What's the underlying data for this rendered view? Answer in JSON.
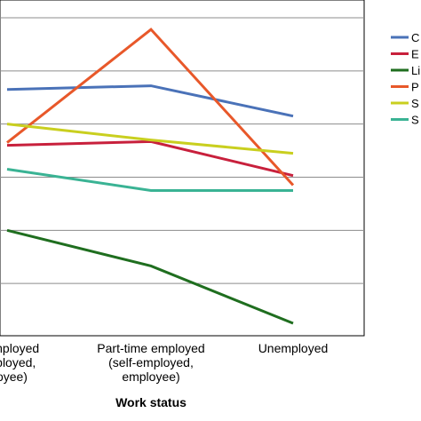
{
  "chart_data": {
    "type": "line",
    "xlabel": "Work status",
    "ylabel": "",
    "categories": [
      [
        "e employed",
        "employed,",
        "ployee)"
      ],
      [
        "Part-time employed",
        "(self-employed,",
        "employee)"
      ],
      [
        "Unemployed"
      ]
    ],
    "ylim": [
      0,
      6
    ],
    "gridlines": [
      1,
      2,
      3,
      4,
      5
    ],
    "grid": true,
    "legend_position": "right",
    "series": [
      {
        "name": "C",
        "color": "#4a72b8",
        "values": [
          4.65,
          4.72,
          4.15
        ]
      },
      {
        "name": "E",
        "color": "#c8203c",
        "values": [
          3.6,
          3.67,
          3.03
        ]
      },
      {
        "name": "Li",
        "color": "#1f6e1f",
        "values": [
          2.0,
          1.33,
          0.25
        ]
      },
      {
        "name": "P",
        "color": "#e8582a",
        "values": [
          3.65,
          5.78,
          2.85
        ]
      },
      {
        "name": "S",
        "color": "#c9cf1f",
        "values": [
          4.0,
          3.7,
          3.45
        ]
      },
      {
        "name": "S",
        "color": "#3ab394",
        "values": [
          3.15,
          2.75,
          2.75
        ]
      }
    ]
  }
}
